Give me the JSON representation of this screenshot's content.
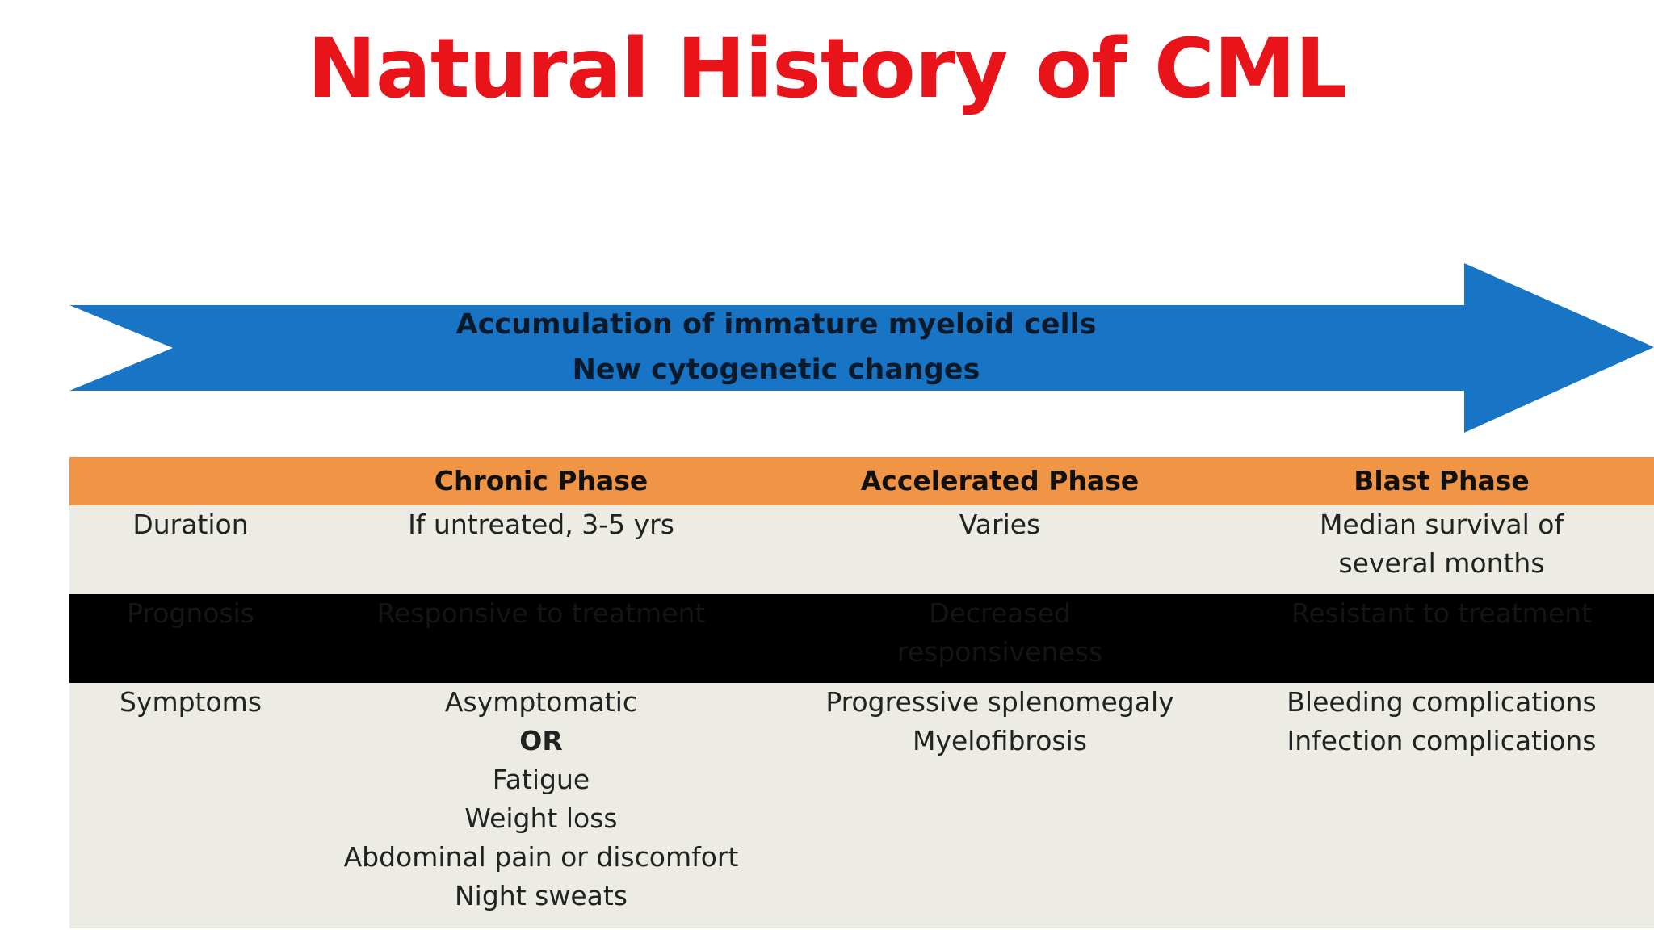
{
  "title": "Natural History of CML",
  "arrow": {
    "color": "#1874c4",
    "lines": [
      "Accumulation of immature myeloid cells",
      "New cytogenetic changes"
    ]
  },
  "table": {
    "header_color": "#f09446",
    "columns": [
      "",
      "Chronic Phase",
      "Accelerated Phase",
      "Blast Phase"
    ],
    "rows": {
      "duration": {
        "label": "Duration",
        "chronic": [
          "If untreated, 3-5 yrs"
        ],
        "accelerated": [
          "Varies"
        ],
        "blast": [
          "Median survival of",
          "several months"
        ]
      },
      "prognosis": {
        "label": "Prognosis",
        "chronic": [
          "Responsive to treatment"
        ],
        "accelerated": [
          "Decreased",
          "responsiveness"
        ],
        "blast": [
          "Resistant to treatment"
        ]
      },
      "symptoms": {
        "label": "Symptoms",
        "chronic": [
          "Asymptomatic",
          "OR",
          "Fatigue",
          "Weight loss",
          "Abdominal pain or discomfort",
          "Night sweats"
        ],
        "accelerated": [
          "Progressive splenomegaly",
          "Myelofibrosis"
        ],
        "blast": [
          "Bleeding complications",
          "Infection complications"
        ]
      }
    }
  }
}
